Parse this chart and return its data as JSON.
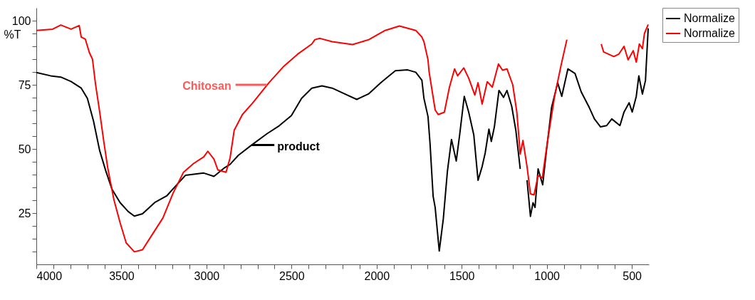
{
  "chart_data": {
    "type": "line",
    "ylabel": "%T",
    "xlim": [
      4000,
      400
    ],
    "ylim": [
      5,
      105
    ],
    "xticks": [
      4000,
      {
        "value": 3900,
        "label": null
      },
      {
        "value": 3800,
        "label": null
      },
      {
        "value": 3700,
        "label": null
      },
      {
        "value": 3600,
        "label": null
      },
      3500,
      {
        "value": 3400,
        "label": null
      },
      {
        "value": 3300,
        "label": null
      },
      {
        "value": 3200,
        "label": null
      },
      {
        "value": 3100,
        "label": null
      },
      3000,
      {
        "value": 2900,
        "label": null
      },
      {
        "value": 2800,
        "label": null
      },
      {
        "value": 2700,
        "label": null
      },
      {
        "value": 2600,
        "label": null
      },
      2500,
      {
        "value": 2400,
        "label": null
      },
      {
        "value": 2300,
        "label": null
      },
      {
        "value": 2200,
        "label": null
      },
      {
        "value": 2100,
        "label": null
      },
      2000,
      {
        "value": 1900,
        "label": null
      },
      {
        "value": 1800,
        "label": null
      },
      {
        "value": 1700,
        "label": null
      },
      {
        "value": 1600,
        "label": null
      },
      1500,
      {
        "value": 1400,
        "label": null
      },
      {
        "value": 1300,
        "label": null
      },
      {
        "value": 1200,
        "label": null
      },
      {
        "value": 1100,
        "label": null
      },
      1000,
      {
        "value": 900,
        "label": null
      },
      {
        "value": 800,
        "label": null
      },
      {
        "value": 700,
        "label": null
      },
      {
        "value": 600,
        "label": null
      },
      500
    ],
    "yticks": [
      {
        "value": 10,
        "label": null
      },
      {
        "value": 15,
        "label": null
      },
      {
        "value": 20,
        "label": null
      },
      25,
      {
        "value": 30,
        "label": null
      },
      {
        "value": 35,
        "label": null
      },
      {
        "value": 40,
        "label": null
      },
      {
        "value": 45,
        "label": null
      },
      50,
      {
        "value": 55,
        "label": null
      },
      {
        "value": 60,
        "label": null
      },
      {
        "value": 65,
        "label": null
      },
      {
        "value": 70,
        "label": null
      },
      75,
      {
        "value": 80,
        "label": null
      },
      {
        "value": 85,
        "label": null
      },
      {
        "value": 90,
        "label": null
      },
      {
        "value": 95,
        "label": null
      },
      100
    ],
    "grid": false,
    "legend": "top right",
    "line_style": "solid",
    "marker": "none",
    "series": [
      {
        "name": "Normalize",
        "color": "#000000",
        "x": [
          4000,
          3916,
          3856,
          3796,
          3736,
          3700,
          3664,
          3628,
          3592,
          3556,
          3508,
          3460,
          3424,
          3376,
          3304,
          3232,
          3172,
          3124,
          3016,
          2956,
          2893,
          2861,
          2813,
          2735,
          2645,
          2573,
          2501,
          2441,
          2381,
          2321,
          2261,
          2189,
          2117,
          2046,
          1974,
          1890,
          1818,
          1770,
          1734,
          1722,
          1698,
          1686,
          1668,
          1656,
          1632,
          1608,
          1584,
          1560,
          1532,
          1512,
          1485,
          1459,
          1429,
          1404,
          1380,
          1362,
          1340,
          1326,
          1308,
          1281,
          1254,
          1234,
          1206,
          1182,
          1156,
          1140,
          1116,
          1096,
          1081,
          1069,
          1051,
          1024,
          1002,
          972,
          936,
          912,
          876,
          834,
          798,
          750,
          720,
          684,
          648,
          618,
          570,
          546,
          516,
          498,
          474,
          459,
          438,
          420,
          404
        ],
        "values": [
          79.8,
          78.5,
          78,
          76.3,
          73.7,
          69.7,
          60.9,
          49.4,
          41.5,
          34.4,
          29.1,
          25.6,
          23.8,
          24.7,
          29.1,
          31.8,
          36.2,
          39.7,
          40.6,
          39.3,
          42.7,
          44,
          47.5,
          51.5,
          55.9,
          59,
          63,
          69.7,
          73.7,
          74.6,
          73.7,
          71.5,
          69.3,
          71.5,
          75.9,
          80.5,
          80.8,
          79.9,
          76.8,
          69.7,
          62.6,
          52,
          31.6,
          27.2,
          10.2,
          22.8,
          41.3,
          53.7,
          45.3,
          55.5,
          70.5,
          64.4,
          55.5,
          37.8,
          43.1,
          48.4,
          57.7,
          52.9,
          58.6,
          72.8,
          70.1,
          72.8,
          66.6,
          57.3,
          42.2,
          null,
          37.8,
          23.7,
          29,
          27.2,
          42.2,
          36,
          49.3,
          66.1,
          75.8,
          70.5,
          81.2,
          79.4,
          72.3,
          66.1,
          61.7,
          58.6,
          59.1,
          61.7,
          59.1,
          64.4,
          68,
          64.4,
          70.5,
          78.5,
          71.4,
          76.7,
          97
        ]
      },
      {
        "name": "Normalize",
        "color": "#ff0000",
        "x": [
          4000,
          3904,
          3856,
          3796,
          3748,
          3736,
          3712,
          3688,
          3670,
          3652,
          3628,
          3604,
          3580,
          3544,
          3508,
          3472,
          3424,
          3376,
          3316,
          3256,
          3196,
          3136,
          3076,
          3016,
          2992,
          2956,
          2933,
          2885,
          2861,
          2837,
          2789,
          2729,
          2633,
          2549,
          2465,
          2381,
          2363,
          2333,
          2261,
          2141,
          2046,
          1950,
          1866,
          1770,
          1734,
          1722,
          1698,
          1692,
          1656,
          1638,
          1602,
          1572,
          1542,
          1524,
          1488,
          1459,
          1423,
          1404,
          1380,
          1350,
          1320,
          1284,
          1260,
          1234,
          1200,
          1176,
          1156,
          1140,
          1116,
          1096,
          1075,
          1051,
          1026,
          996,
          954,
          915,
          882,
          860,
          700,
          680,
          666,
          606,
          576,
          546,
          522,
          492,
          474,
          456,
          438,
          426,
          404
        ],
        "values": [
          96.2,
          96.7,
          98.3,
          96.7,
          98.1,
          93.6,
          92.8,
          87.5,
          85,
          75.2,
          64.6,
          53.1,
          42.5,
          30.2,
          21.3,
          13.4,
          9.9,
          10.7,
          16.9,
          23.1,
          32.8,
          40.8,
          44.3,
          46.9,
          49.1,
          46,
          41.8,
          40.9,
          46.6,
          57.3,
          63.4,
          67.9,
          75.8,
          82,
          86.9,
          90.9,
          92.6,
          93.1,
          91.8,
          90.7,
          92.6,
          96.2,
          97.9,
          96.2,
          93.6,
          91.8,
          84.7,
          80.2,
          65.2,
          63.4,
          64.3,
          74.1,
          81.2,
          78.5,
          81.6,
          77.6,
          71,
          75.8,
          67.5,
          76.2,
          74.1,
          83.1,
          80.7,
          81.2,
          75,
          64.3,
          48,
          53.3,
          43.1,
          32.5,
          32.1,
          39.6,
          38.7,
          52.9,
          70.5,
          82.9,
          92.6,
          null,
          null,
          90.9,
          87.8,
          86,
          87,
          90,
          84.7,
          88.3,
          83.8,
          90.9,
          89.1,
          95,
          98.5
        ]
      }
    ],
    "annotations": [
      {
        "text": "Chitosan",
        "x": 2645,
        "y": 75
      },
      {
        "text": "product",
        "x": 2735,
        "y": 51.5
      }
    ]
  }
}
